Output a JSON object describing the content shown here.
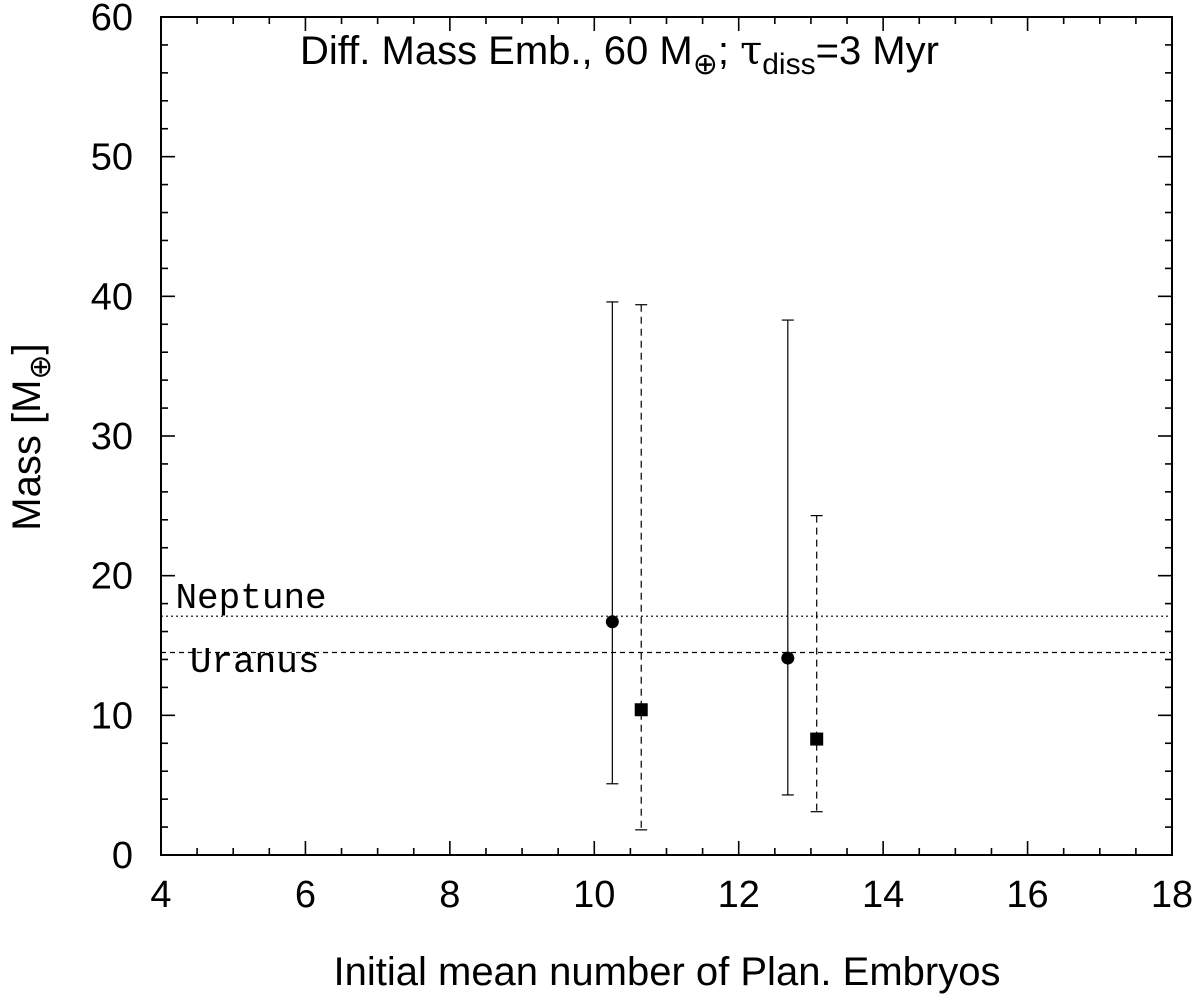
{
  "chart_data": {
    "type": "scatter",
    "title_parts": {
      "lead": "Diff. Mass Emb., 60 M",
      "earth_symbol": "⊕",
      "mid": "; ",
      "tau": "τ",
      "tau_sub": "diss",
      "tail": "=3 Myr"
    },
    "xlabel": "Initial mean number of Plan. Embryos",
    "ylabel_parts": {
      "lead": "Mass [M",
      "earth_symbol": "⊕",
      "tail": "]"
    },
    "xlim": [
      4,
      18
    ],
    "ylim": [
      0,
      60
    ],
    "xticks": [
      4,
      6,
      8,
      10,
      12,
      14,
      16,
      18
    ],
    "yticks": [
      0,
      10,
      20,
      30,
      40,
      50,
      60
    ],
    "x_minor_step": 0.5,
    "y_minor_step": 2,
    "grid": false,
    "legend": "none",
    "reference_lines": [
      {
        "name": "Neptune",
        "label": "Neptune",
        "value": 17.1,
        "style": "dotted",
        "label_x": 4.2,
        "label_y": 17.7
      },
      {
        "name": "Uranus",
        "label": "Uranus",
        "value": 14.5,
        "style": "dashed",
        "label_x": 4.4,
        "label_y": 13.1
      }
    ],
    "series": [
      {
        "name": "circles",
        "marker": "circle",
        "errorbar_style": "solid",
        "points": [
          {
            "x": 10.25,
            "y": 16.7,
            "ymin": 5.1,
            "ymax": 39.6
          },
          {
            "x": 12.68,
            "y": 14.1,
            "ymin": 4.3,
            "ymax": 38.3
          }
        ]
      },
      {
        "name": "squares",
        "marker": "square",
        "errorbar_style": "dashed",
        "points": [
          {
            "x": 10.65,
            "y": 10.4,
            "ymin": 1.8,
            "ymax": 39.4
          },
          {
            "x": 13.08,
            "y": 8.3,
            "ymin": 3.1,
            "ymax": 24.3
          }
        ]
      }
    ]
  }
}
